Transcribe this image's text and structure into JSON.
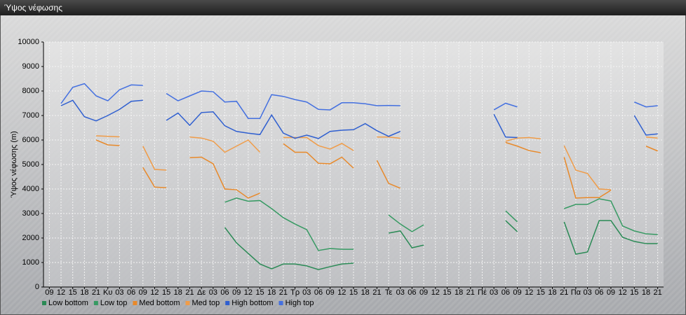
{
  "chart_data": {
    "type": "line",
    "title": "Ύψος νέφωσης",
    "ylabel": "Ύψος νέφωσης (m)",
    "categories": [
      "09",
      "12",
      "15",
      "18",
      "21",
      "Κυ",
      "03",
      "06",
      "09",
      "12",
      "15",
      "18",
      "21",
      "Δε",
      "03",
      "06",
      "09",
      "12",
      "15",
      "18",
      "21",
      "Τρ",
      "03",
      "06",
      "09",
      "12",
      "15",
      "18",
      "21",
      "Τε",
      "03",
      "06",
      "09",
      "12",
      "15",
      "18",
      "21",
      "Πέ",
      "03",
      "06",
      "09",
      "12",
      "15",
      "18",
      "21",
      "Πα",
      "03",
      "06",
      "09",
      "12",
      "15",
      "18",
      "21"
    ],
    "ylim": [
      0,
      10000
    ],
    "yticks": [
      0,
      1000,
      2000,
      3000,
      4000,
      5000,
      6000,
      7000,
      8000,
      9000,
      10000
    ],
    "grid": true,
    "legend": "bottom-left",
    "series": [
      {
        "name": "Low bottom",
        "color": "#2a8a55",
        "values": [
          null,
          null,
          null,
          null,
          null,
          null,
          null,
          null,
          null,
          null,
          null,
          null,
          null,
          null,
          null,
          2430,
          1800,
          1370,
          940,
          740,
          940,
          940,
          860,
          710,
          830,
          940,
          970,
          null,
          null,
          2200,
          2290,
          1600,
          1710,
          null,
          null,
          null,
          null,
          null,
          null,
          2710,
          2260,
          null,
          null,
          null,
          2660,
          1340,
          1430,
          2710,
          2710,
          2030,
          1860,
          1770,
          1770
        ]
      },
      {
        "name": "Low top",
        "color": "#379a63",
        "values": [
          null,
          null,
          null,
          null,
          null,
          null,
          null,
          null,
          null,
          null,
          null,
          null,
          null,
          null,
          null,
          3460,
          3630,
          3500,
          3530,
          3200,
          2830,
          2570,
          2340,
          1490,
          1570,
          1540,
          1540,
          null,
          null,
          2940,
          2570,
          2260,
          2540,
          null,
          null,
          null,
          null,
          null,
          null,
          3110,
          2660,
          null,
          null,
          null,
          3200,
          3370,
          3370,
          3600,
          3510,
          2490,
          2290,
          2170,
          2140
        ]
      },
      {
        "name": "Med bottom",
        "color": "#e8892a",
        "values": [
          null,
          null,
          null,
          null,
          6000,
          5800,
          5770,
          null,
          4880,
          4080,
          4050,
          null,
          5280,
          5300,
          5030,
          4000,
          3970,
          3630,
          3830,
          null,
          5850,
          5500,
          5500,
          5050,
          5030,
          5300,
          4850,
          null,
          5170,
          4230,
          4030,
          null,
          null,
          null,
          null,
          null,
          null,
          null,
          null,
          5900,
          5750,
          5570,
          5480,
          null,
          5300,
          3630,
          3650,
          3650,
          3950,
          null,
          null,
          5750,
          5550
        ]
      },
      {
        "name": "Med top",
        "color": "#f09c48",
        "values": [
          null,
          null,
          null,
          null,
          6170,
          6150,
          6130,
          null,
          5750,
          4800,
          4770,
          null,
          6120,
          6080,
          5950,
          5500,
          5750,
          6000,
          5500,
          null,
          6100,
          6100,
          6100,
          5770,
          5630,
          5860,
          5570,
          null,
          6120,
          6120,
          6070,
          null,
          null,
          null,
          null,
          null,
          null,
          null,
          null,
          5950,
          6080,
          6100,
          6050,
          null,
          5770,
          4770,
          4630,
          4000,
          3970,
          null,
          null,
          6120,
          6080
        ]
      },
      {
        "name": "High bottom",
        "color": "#2f5fd0",
        "values": [
          null,
          7400,
          7620,
          6950,
          6780,
          7000,
          7250,
          7580,
          7620,
          null,
          6800,
          7100,
          6600,
          7120,
          7150,
          6580,
          6350,
          6280,
          6220,
          7020,
          6280,
          6070,
          6200,
          6060,
          6350,
          6400,
          6420,
          6670,
          6380,
          6150,
          6350,
          null,
          null,
          null,
          null,
          null,
          null,
          null,
          7050,
          6120,
          6100,
          null,
          null,
          null,
          null,
          null,
          null,
          null,
          null,
          null,
          7000,
          6200,
          6250
        ]
      },
      {
        "name": "High top",
        "color": "#4470e0",
        "values": [
          null,
          7490,
          8150,
          8300,
          7800,
          7600,
          8050,
          8250,
          8230,
          null,
          7900,
          7600,
          7800,
          8000,
          7970,
          7550,
          7580,
          6880,
          6880,
          7850,
          7780,
          7650,
          7550,
          7250,
          7230,
          7520,
          7520,
          7480,
          7400,
          7410,
          7400,
          null,
          null,
          null,
          null,
          null,
          null,
          null,
          7230,
          7500,
          7350,
          null,
          null,
          null,
          null,
          null,
          null,
          null,
          null,
          null,
          7550,
          7350,
          7400
        ]
      }
    ]
  }
}
